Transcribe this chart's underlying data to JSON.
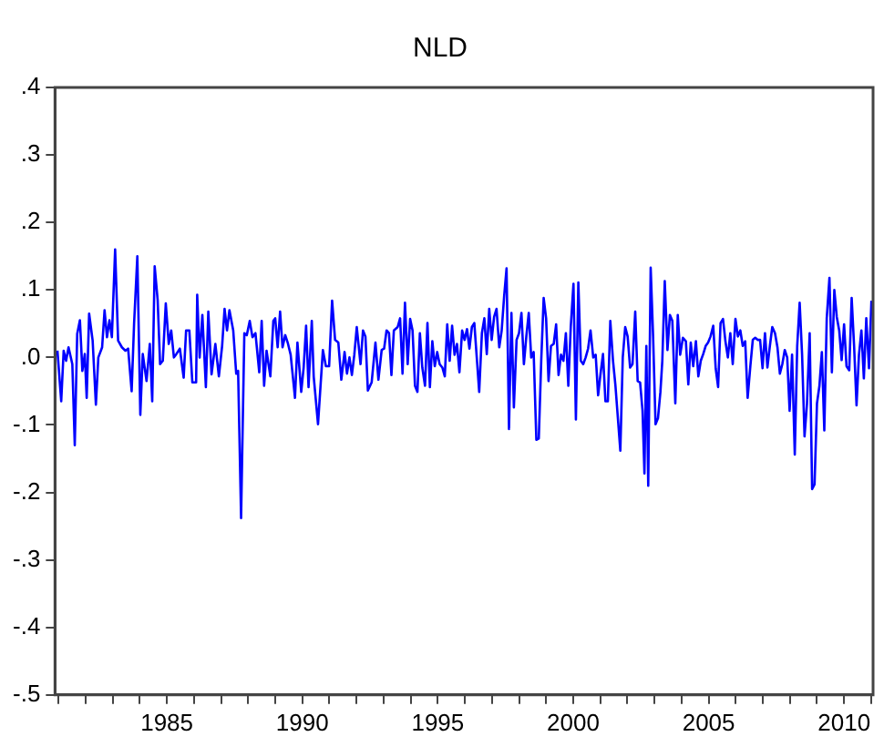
{
  "chart_data": {
    "type": "line",
    "title": "NLD",
    "marker": "none",
    "line_style": "solid",
    "x": [
      1980.96,
      1981.1,
      1981.19,
      1981.28,
      1981.37,
      1981.51,
      1981.6,
      1981.69,
      1981.79,
      1981.88,
      1981.97,
      1982.04,
      1982.13,
      1982.26,
      1982.38,
      1982.47,
      1982.61,
      1982.7,
      1982.79,
      1982.88,
      1982.97,
      1983.09,
      1983.2,
      1983.34,
      1983.47,
      1983.57,
      1983.7,
      1983.79,
      1983.91,
      1984.02,
      1984.11,
      1984.25,
      1984.37,
      1984.46,
      1984.55,
      1984.66,
      1984.75,
      1984.85,
      1984.96,
      1985.07,
      1985.16,
      1985.26,
      1985.35,
      1985.48,
      1985.62,
      1985.71,
      1985.83,
      1985.94,
      1986.08,
      1986.12,
      1986.21,
      1986.31,
      1986.44,
      1986.53,
      1986.65,
      1986.79,
      1986.92,
      1987.04,
      1987.13,
      1987.22,
      1987.31,
      1987.45,
      1987.56,
      1987.63,
      1987.74,
      1987.86,
      1987.95,
      1988.06,
      1988.16,
      1988.27,
      1988.41,
      1988.5,
      1988.59,
      1988.68,
      1988.82,
      1988.93,
      1989.0,
      1989.09,
      1989.18,
      1989.27,
      1989.37,
      1989.46,
      1989.57,
      1989.73,
      1989.82,
      1989.96,
      1990.05,
      1990.14,
      1990.23,
      1990.35,
      1990.42,
      1990.58,
      1990.76,
      1990.87,
      1990.99,
      1991.1,
      1991.21,
      1991.33,
      1991.44,
      1991.56,
      1991.65,
      1991.74,
      1991.83,
      1991.92,
      1992.01,
      1992.15,
      1992.24,
      1992.33,
      1992.42,
      1992.56,
      1992.7,
      1992.81,
      1992.93,
      1993.02,
      1993.11,
      1993.2,
      1993.29,
      1993.38,
      1993.52,
      1993.61,
      1993.7,
      1993.79,
      1993.89,
      1993.98,
      1994.07,
      1994.16,
      1994.25,
      1994.34,
      1994.43,
      1994.53,
      1994.62,
      1994.71,
      1994.8,
      1994.89,
      1994.98,
      1995.07,
      1995.17,
      1995.26,
      1995.35,
      1995.44,
      1995.53,
      1995.62,
      1995.71,
      1995.8,
      1995.9,
      1995.99,
      1996.08,
      1996.17,
      1996.26,
      1996.35,
      1996.44,
      1996.53,
      1996.63,
      1996.72,
      1996.81,
      1996.9,
      1996.99,
      1997.08,
      1997.17,
      1997.27,
      1997.36,
      1997.45,
      1997.54,
      1997.63,
      1997.72,
      1997.81,
      1997.91,
      1998.0,
      1998.09,
      1998.18,
      1998.27,
      1998.36,
      1998.45,
      1998.54,
      1998.64,
      1998.73,
      1998.82,
      1998.91,
      1999.0,
      1999.09,
      1999.18,
      1999.28,
      1999.37,
      1999.46,
      1999.55,
      1999.64,
      1999.73,
      1999.82,
      1999.91,
      2000.01,
      2000.1,
      2000.19,
      2000.28,
      2000.37,
      2000.46,
      2000.55,
      2000.64,
      2000.74,
      2000.83,
      2000.92,
      2001.01,
      2001.1,
      2001.19,
      2001.28,
      2001.37,
      2001.47,
      2001.56,
      2001.74,
      2001.83,
      2001.92,
      2002.01,
      2002.1,
      2002.19,
      2002.29,
      2002.38,
      2002.47,
      2002.56,
      2002.63,
      2002.7,
      2002.77,
      2002.86,
      2002.95,
      2003.04,
      2003.13,
      2003.22,
      2003.29,
      2003.38,
      2003.48,
      2003.57,
      2003.66,
      2003.77,
      2003.86,
      2003.95,
      2004.05,
      2004.16,
      2004.25,
      2004.34,
      2004.43,
      2004.53,
      2004.62,
      2004.71,
      2004.8,
      2004.89,
      2004.98,
      2005.07,
      2005.17,
      2005.26,
      2005.35,
      2005.44,
      2005.53,
      2005.62,
      2005.71,
      2005.8,
      2005.89,
      2005.99,
      2006.08,
      2006.17,
      2006.26,
      2006.35,
      2006.44,
      2006.54,
      2006.63,
      2006.72,
      2006.81,
      2006.9,
      2006.99,
      2007.08,
      2007.17,
      2007.26,
      2007.35,
      2007.45,
      2007.54,
      2007.63,
      2007.72,
      2007.81,
      2007.9,
      2007.99,
      2008.08,
      2008.18,
      2008.27,
      2008.36,
      2008.45,
      2008.54,
      2008.63,
      2008.73,
      2008.82,
      2008.91,
      2009.0,
      2009.09,
      2009.18,
      2009.27,
      2009.36,
      2009.46,
      2009.55,
      2009.64,
      2009.73,
      2009.82,
      2009.91,
      2010.0,
      2010.09,
      2010.19,
      2010.28,
      2010.37,
      2010.46,
      2010.55,
      2010.64,
      2010.73,
      2010.82,
      2010.92,
      2011.01
    ],
    "values": [
      0.01,
      -0.065,
      0.01,
      -0.005,
      0.015,
      -0.01,
      -0.13,
      0.035,
      0.055,
      -0.02,
      0.005,
      -0.06,
      0.065,
      0.025,
      -0.07,
      0.0,
      0.015,
      0.07,
      0.03,
      0.055,
      0.03,
      0.16,
      0.025,
      0.015,
      0.01,
      0.013,
      -0.05,
      0.05,
      0.15,
      -0.085,
      0.005,
      -0.035,
      0.02,
      -0.065,
      0.135,
      0.085,
      -0.01,
      -0.005,
      0.08,
      0.02,
      0.04,
      0.0,
      0.005,
      0.013,
      -0.03,
      0.04,
      0.04,
      -0.037,
      -0.037,
      0.093,
      0.0,
      0.063,
      -0.044,
      0.068,
      -0.025,
      0.02,
      -0.028,
      0.017,
      0.072,
      0.04,
      0.07,
      0.04,
      -0.024,
      -0.02,
      -0.238,
      0.036,
      0.033,
      0.054,
      0.03,
      0.036,
      -0.022,
      0.054,
      -0.042,
      0.01,
      -0.028,
      0.054,
      0.058,
      0.015,
      0.068,
      0.015,
      0.033,
      0.022,
      0.004,
      -0.06,
      0.022,
      -0.051,
      -0.015,
      0.047,
      -0.044,
      0.054,
      -0.028,
      -0.099,
      0.011,
      -0.013,
      -0.013,
      0.084,
      0.026,
      0.022,
      -0.033,
      0.008,
      -0.024,
      0.0,
      -0.026,
      0.004,
      0.045,
      -0.01,
      0.04,
      0.031,
      -0.049,
      -0.037,
      0.022,
      -0.033,
      0.011,
      0.013,
      0.04,
      0.036,
      -0.026,
      0.04,
      0.045,
      0.058,
      -0.024,
      0.081,
      -0.01,
      0.057,
      0.04,
      -0.042,
      -0.051,
      0.036,
      -0.015,
      -0.042,
      0.051,
      -0.044,
      0.024,
      -0.013,
      0.008,
      -0.01,
      -0.015,
      -0.028,
      0.049,
      -0.005,
      0.047,
      0.004,
      0.02,
      -0.022,
      0.04,
      0.026,
      0.042,
      0.013,
      0.045,
      0.051,
      0.0,
      -0.051,
      0.036,
      0.058,
      0.005,
      0.072,
      0.026,
      0.06,
      0.072,
      0.015,
      0.04,
      0.09,
      0.132,
      -0.106,
      0.066,
      -0.074,
      0.026,
      0.036,
      0.066,
      -0.01,
      0.031,
      0.066,
      0.0,
      0.008,
      -0.122,
      -0.12,
      -0.005,
      0.088,
      0.058,
      -0.035,
      0.017,
      0.02,
      0.049,
      -0.026,
      0.004,
      -0.005,
      0.036,
      -0.042,
      0.045,
      0.109,
      -0.092,
      0.111,
      -0.005,
      -0.01,
      0.0,
      0.013,
      0.04,
      0.0,
      0.004,
      -0.056,
      -0.024,
      0.005,
      -0.065,
      -0.065,
      0.054,
      -0.005,
      -0.042,
      -0.138,
      0.0,
      0.045,
      0.031,
      -0.015,
      -0.01,
      0.068,
      -0.035,
      -0.037,
      -0.079,
      -0.172,
      0.017,
      -0.19,
      0.133,
      0.031,
      -0.099,
      -0.09,
      -0.051,
      -0.005,
      0.113,
      0.011,
      0.063,
      0.054,
      -0.068,
      0.063,
      0.004,
      0.029,
      0.024,
      -0.04,
      0.022,
      -0.013,
      0.024,
      -0.028,
      -0.005,
      0.005,
      0.017,
      0.022,
      0.031,
      0.047,
      -0.016,
      -0.044,
      0.051,
      0.057,
      0.024,
      0.0,
      0.036,
      -0.01,
      0.057,
      0.031,
      0.04,
      0.017,
      0.024,
      -0.06,
      -0.013,
      0.026,
      0.029,
      0.026,
      0.026,
      -0.016,
      0.036,
      -0.015,
      0.017,
      0.045,
      0.036,
      0.015,
      -0.024,
      -0.01,
      0.011,
      0.0,
      -0.079,
      0.004,
      -0.144,
      0.017,
      0.081,
      0.004,
      -0.117,
      -0.069,
      0.036,
      -0.195,
      -0.188,
      -0.068,
      -0.042,
      0.008,
      -0.108,
      0.058,
      0.118,
      -0.022,
      0.1,
      0.06,
      0.04,
      -0.004,
      0.049,
      -0.013,
      -0.019,
      0.088,
      0.017,
      -0.071,
      0.004,
      0.04,
      -0.031,
      0.058,
      -0.016,
      0.084
    ],
    "color": "#0000ff",
    "xlim": [
      1980.87,
      2011.07
    ],
    "xticks": [
      {
        "value": 1981,
        "label": null
      },
      {
        "value": 1982,
        "label": null
      },
      {
        "value": 1983,
        "label": null
      },
      {
        "value": 1984,
        "label": null
      },
      1985,
      {
        "value": 1986,
        "label": null
      },
      {
        "value": 1987,
        "label": null
      },
      {
        "value": 1988,
        "label": null
      },
      {
        "value": 1989,
        "label": null
      },
      1990,
      {
        "value": 1991,
        "label": null
      },
      {
        "value": 1992,
        "label": null
      },
      {
        "value": 1993,
        "label": null
      },
      {
        "value": 1994,
        "label": null
      },
      1995,
      {
        "value": 1996,
        "label": null
      },
      {
        "value": 1997,
        "label": null
      },
      {
        "value": 1998,
        "label": null
      },
      {
        "value": 1999,
        "label": null
      },
      2000,
      {
        "value": 2001,
        "label": null
      },
      {
        "value": 2002,
        "label": null
      },
      {
        "value": 2003,
        "label": null
      },
      {
        "value": 2004,
        "label": null
      },
      2005,
      {
        "value": 2006,
        "label": null
      },
      {
        "value": 2007,
        "label": null
      },
      {
        "value": 2008,
        "label": null
      },
      {
        "value": 2009,
        "label": null
      },
      2010,
      {
        "value": 2011,
        "label": null
      }
    ],
    "ylim": [
      -0.5,
      0.4
    ],
    "yticks": [
      {
        "value": -0.5,
        "label": "-.5"
      },
      {
        "value": -0.4,
        "label": "-.4"
      },
      {
        "value": -0.3,
        "label": "-.3"
      },
      {
        "value": -0.2,
        "label": "-.2"
      },
      {
        "value": -0.1,
        "label": "-.1"
      },
      {
        "value": 0,
        "label": ".0"
      },
      {
        "value": 0.1,
        "label": ".1"
      },
      {
        "value": 0.2,
        "label": ".2"
      },
      {
        "value": 0.3,
        "label": ".3"
      },
      {
        "value": 0.4,
        "label": ".4"
      }
    ]
  }
}
